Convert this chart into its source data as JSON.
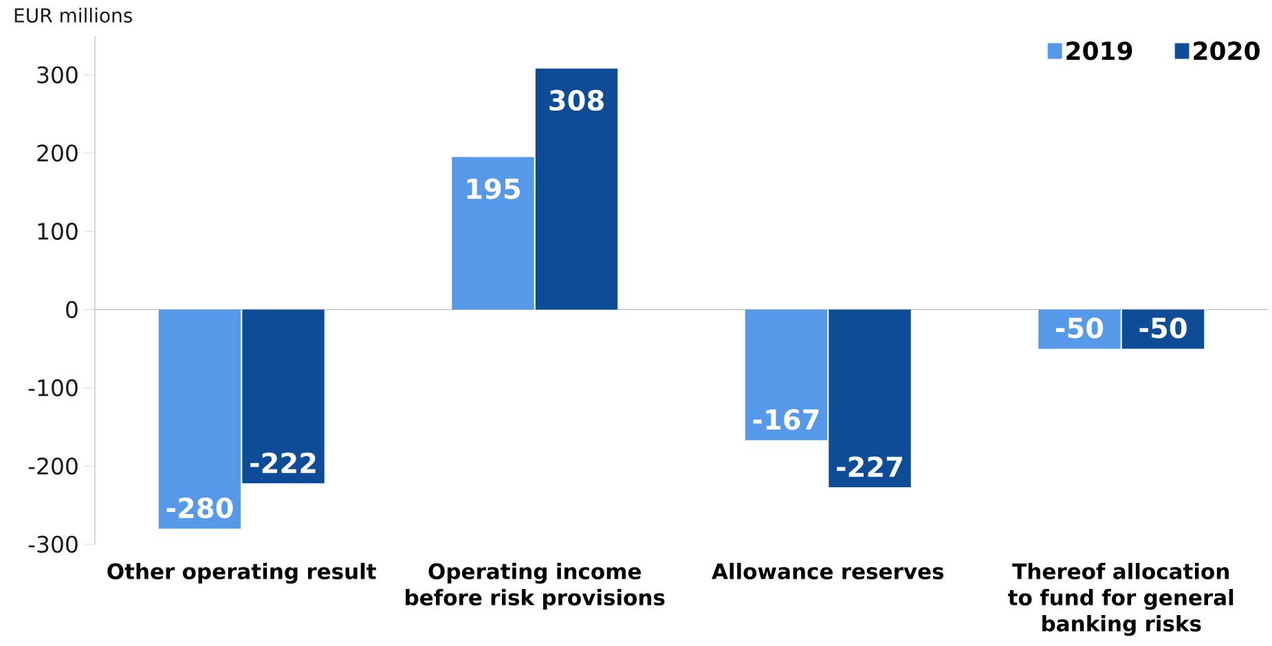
{
  "chart_data": {
    "type": "bar",
    "ylabel": "EUR millions",
    "categories": [
      "Other operating result",
      "Operating income before risk provisions",
      "Allowance reserves",
      "Thereof allocation to fund for general banking risks"
    ],
    "series": [
      {
        "name": "2019",
        "color": "#5599e8",
        "values": [
          -280,
          195,
          -167,
          -50
        ]
      },
      {
        "name": "2020",
        "color": "#0f4c97",
        "values": [
          -222,
          308,
          -227,
          -50
        ]
      }
    ],
    "ylim": [
      -300,
      350
    ],
    "yticks": [
      -300,
      -200,
      -100,
      0,
      100,
      200,
      300
    ],
    "data_labels": true,
    "legend": "top right"
  }
}
